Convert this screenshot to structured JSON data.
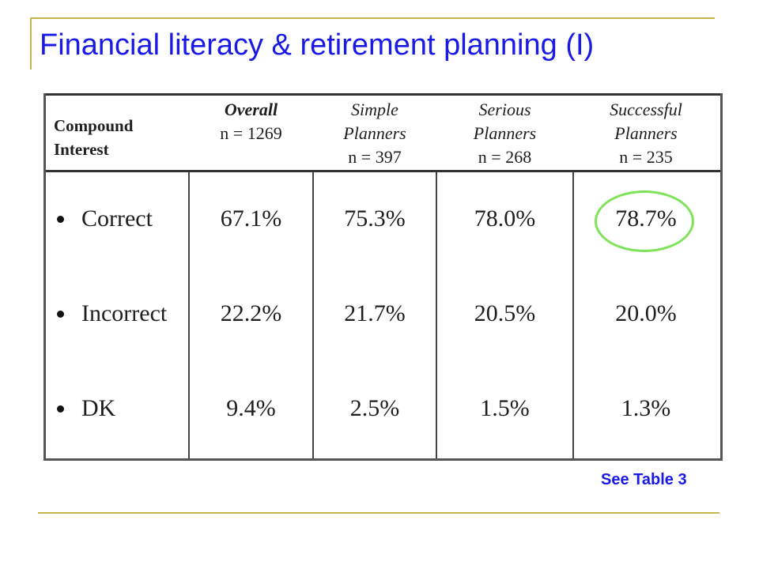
{
  "title": "Financial literacy & retirement planning (I)",
  "table": {
    "corner_label_line1": "Compound",
    "corner_label_line2": "Interest",
    "columns": [
      {
        "name_line1": "",
        "name_line2": "Overall",
        "n": "n = 1269",
        "style": "bold-italic"
      },
      {
        "name_line1": "Simple",
        "name_line2": "Planners",
        "n": "n = 397",
        "style": "italic"
      },
      {
        "name_line1": "Serious",
        "name_line2": "Planners",
        "n": "n = 268",
        "style": "italic"
      },
      {
        "name_line1": "Successful",
        "name_line2": "Planners",
        "n": "n = 235",
        "style": "italic"
      }
    ],
    "rows": [
      {
        "label": "Correct",
        "values": [
          "67.1%",
          "75.3%",
          "78.0%",
          "78.7%"
        ]
      },
      {
        "label": "Incorrect",
        "values": [
          "22.2%",
          "21.7%",
          "20.5%",
          "20.0%"
        ]
      },
      {
        "label": "DK",
        "values": [
          "9.4%",
          "2.5%",
          "1.5%",
          "1.3%"
        ]
      }
    ],
    "highlight_color": "#7ee35a"
  },
  "footnote": "See Table 3",
  "colors": {
    "title": "#1a1ae6",
    "rule": "#c8b54a"
  }
}
